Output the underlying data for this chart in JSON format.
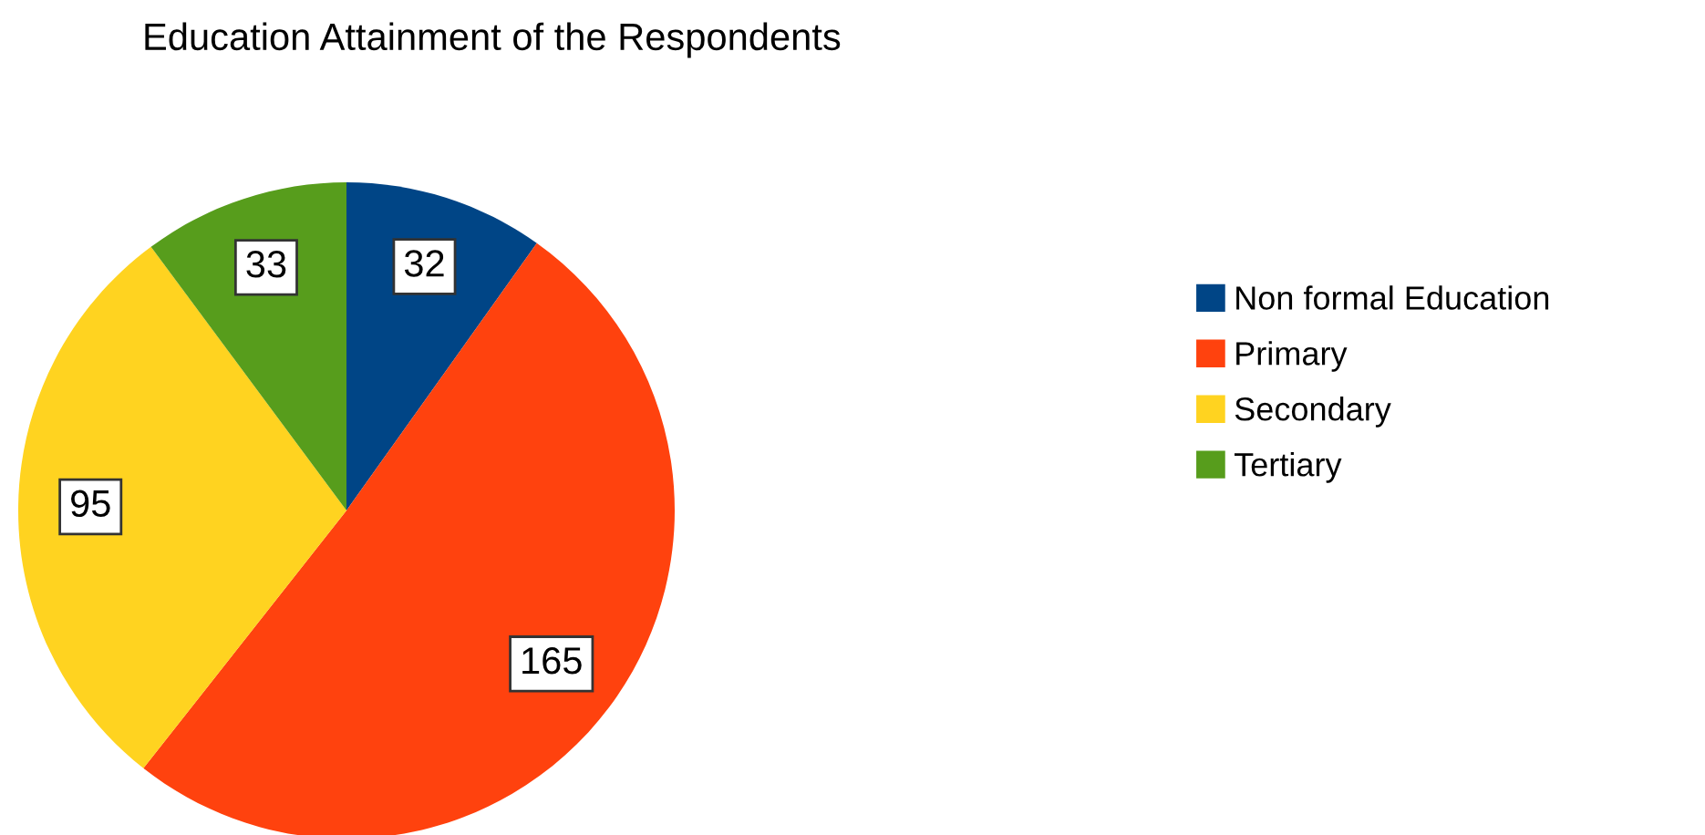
{
  "chart_data": {
    "type": "pie",
    "title": "Education Attainment of the Respondents",
    "categories": [
      "Non formal Education",
      "Primary",
      "Secondary",
      "Tertiary"
    ],
    "values": [
      32,
      165,
      95,
      33
    ],
    "colors": [
      "#004586",
      "#ff420e",
      "#ffd320",
      "#579d1c"
    ],
    "data_labels": true,
    "legend": "right"
  }
}
